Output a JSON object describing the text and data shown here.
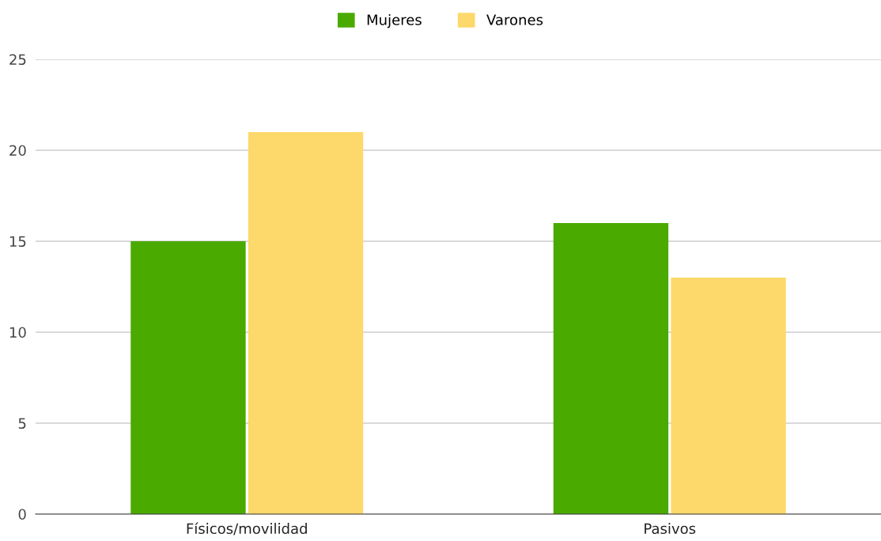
{
  "chart_data": {
    "type": "bar",
    "categories": [
      "Físicos/movilidad",
      "Pasivos"
    ],
    "series": [
      {
        "name": "Mujeres",
        "color": "#4aaa00",
        "values": [
          15,
          16
        ]
      },
      {
        "name": "Varones",
        "color": "#fdd86a",
        "values": [
          21,
          13
        ]
      }
    ],
    "ylim": [
      0,
      25
    ],
    "yticks": [
      0,
      5,
      10,
      15,
      20,
      25
    ],
    "grid": "y",
    "legend": "top"
  }
}
